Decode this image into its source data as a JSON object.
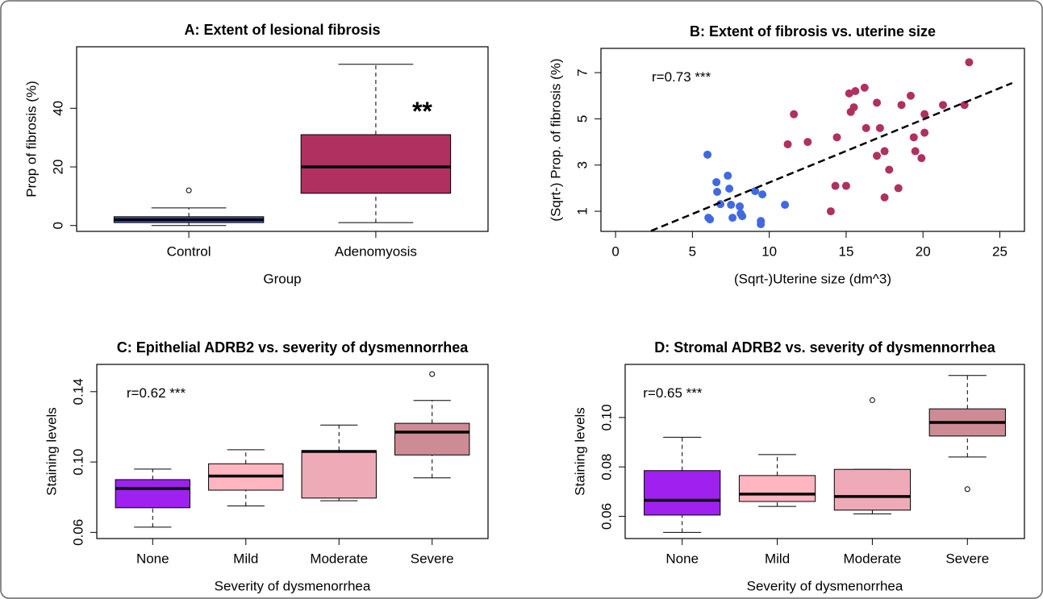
{
  "chart_data": [
    {
      "type": "box",
      "title": "A: Extent of lesional fibrosis",
      "xlabel": "Group",
      "ylabel": "Prop of fibrosis (%)",
      "annotation": "**",
      "categories": [
        "Control",
        "Adenomyosis"
      ],
      "colors": [
        "#3a5fcd",
        "#b03060"
      ],
      "whisker_low": [
        0,
        1
      ],
      "q1": [
        1,
        11
      ],
      "median": [
        2,
        20
      ],
      "q3": [
        3,
        31
      ],
      "whisker_high": [
        6,
        55
      ],
      "outliers": [
        [
          12
        ],
        []
      ],
      "ylim": [
        -2,
        61
      ],
      "yticks": [
        0,
        20,
        40
      ]
    },
    {
      "type": "scatter",
      "title": "B: Extent of fibrosis vs. uterine size",
      "xlabel": "(Sqrt-)Uterine size (dm^3)",
      "ylabel": "(Sqrt-) Prop. of fibrosis (%)",
      "annotation": "r=0.73 ***",
      "series": [
        {
          "color": "#4169e1",
          "x": [
            5.98,
            6.56,
            7.3,
            6.61,
            6.04,
            6.14,
            6.82,
            7.4,
            7.51,
            8.08,
            8.14,
            8.24,
            7.61,
            9.08,
            9.55,
            9.45,
            9.45,
            11.02
          ],
          "values": [
            3.45,
            2.26,
            2.54,
            1.84,
            0.72,
            0.65,
            1.31,
            1.98,
            1.28,
            1.21,
            0.9,
            0.79,
            0.72,
            1.87,
            1.73,
            0.58,
            0.44,
            1.28
          ]
        },
        {
          "color": "#b03060",
          "x": [
            11.6,
            11.2,
            12.5,
            14.0,
            14.3,
            14.4,
            15.0,
            15.2,
            15.3,
            15.5,
            15.6,
            16.2,
            16.3,
            17.0,
            17.0,
            17.2,
            17.5,
            17.5,
            17.8,
            18.4,
            18.6,
            19.2,
            19.4,
            19.5,
            19.9,
            20.1,
            20.1,
            21.3,
            22.7,
            23.0
          ],
          "values": [
            5.2,
            3.9,
            4.0,
            1.0,
            2.1,
            4.2,
            2.1,
            6.1,
            5.3,
            5.5,
            6.2,
            6.35,
            4.6,
            3.4,
            5.7,
            4.6,
            3.6,
            1.6,
            2.8,
            2.0,
            5.6,
            6.0,
            4.2,
            3.6,
            3.3,
            4.4,
            5.2,
            5.6,
            5.6,
            7.45
          ]
        }
      ],
      "trendline": {
        "x": [
          2.3,
          25.8
        ],
        "y": [
          0.15,
          6.55
        ]
      },
      "xlim": [
        -0.95,
        26.6
      ],
      "xticks": [
        0,
        5,
        10,
        15,
        20,
        25
      ],
      "ylim": [
        0.13,
        8.05
      ],
      "yticks": [
        1,
        3,
        5,
        7
      ]
    },
    {
      "type": "box",
      "title": "C: Epithelial ADRB2 vs. severity of dysmennorrhea",
      "xlabel": "Severity of dysmenorrhea",
      "ylabel": "Staining levels",
      "annotation": "r=0.62 ***",
      "categories": [
        "None",
        "Mild",
        "Moderate",
        "Severe"
      ],
      "colors": [
        "#a020f0",
        "#ffb6c1",
        "#efaab8",
        "#cd8c95"
      ],
      "whisker_low": [
        0.063,
        0.075,
        0.078,
        0.091
      ],
      "q1": [
        0.074,
        0.084,
        0.0795,
        0.104
      ],
      "median": [
        0.085,
        0.092,
        0.106,
        0.117
      ],
      "q3": [
        0.09,
        0.099,
        0.1065,
        0.122
      ],
      "whisker_high": [
        0.096,
        0.107,
        0.121,
        0.135
      ],
      "outliers": [
        [],
        [],
        [],
        [
          0.15
        ]
      ],
      "ylim": [
        0.0565,
        0.1555
      ],
      "yticks": [
        {
          "value": 0.06,
          "label": "0.06"
        },
        {
          "value": 0.1,
          "label": "0.10"
        },
        0.14
      ]
    },
    {
      "type": "box",
      "title": "D: Stromal ADRB2 vs. severity of dysmennorrhea",
      "xlabel": "Severity of dysmenorrhea",
      "ylabel": "Staining levels",
      "annotation": "r=0.65 ***",
      "categories": [
        "None",
        "Mild",
        "Moderate",
        "Severe"
      ],
      "colors": [
        "#a020f0",
        "#ffb6c1",
        "#efaab8",
        "#cd8c95"
      ],
      "whisker_low": [
        0.0535,
        0.064,
        0.061,
        0.084
      ],
      "q1": [
        0.0605,
        0.066,
        0.0625,
        0.0925
      ],
      "median": [
        0.0665,
        0.069,
        0.068,
        0.098
      ],
      "q3": [
        0.0785,
        0.0765,
        0.079,
        0.1035
      ],
      "whisker_high": [
        0.092,
        0.085,
        0.079,
        0.117
      ],
      "outliers": [
        [],
        [],
        [
          0.107
        ],
        [
          0.071
        ]
      ],
      "ylim": [
        0.051,
        0.1215
      ],
      "yticks": [
        0.06,
        0.08,
        {
          "value": 0.1,
          "label": "0.10"
        }
      ]
    }
  ]
}
